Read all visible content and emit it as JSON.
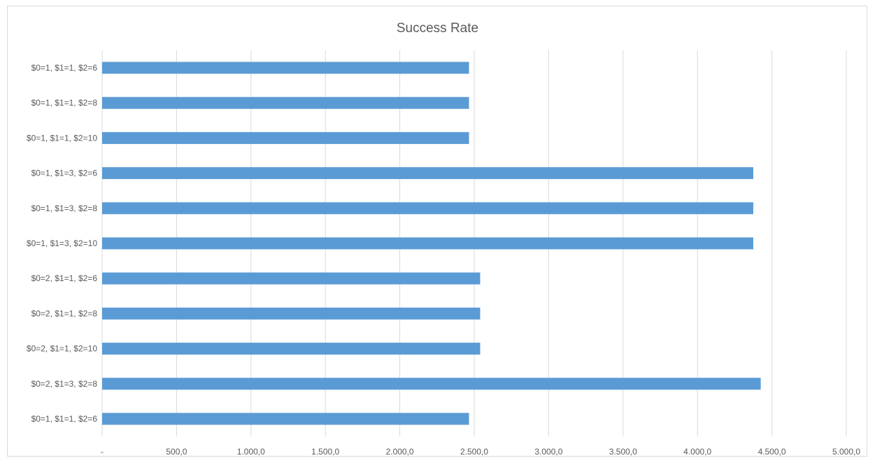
{
  "chart_data": {
    "type": "bar",
    "orientation": "horizontal",
    "title": "Success Rate",
    "xlabel": "",
    "ylabel": "",
    "categories": [
      "$0=1, $1=1, $2=6",
      "$0=1, $1=1, $2=8",
      "$0=1, $1=1, $2=10",
      "$0=1, $1=3, $2=6",
      "$0=1, $1=3, $2=8",
      "$0=1, $1=3, $2=10",
      "$0=2, $1=1, $2=6",
      "$0=2, $1=1, $2=8",
      "$0=2, $1=1, $2=10",
      "$0=2, $1=3, $2=8",
      "$0=1, $1=1, $2=6"
    ],
    "values": [
      2465,
      2465,
      2465,
      4375,
      4375,
      4375,
      2540,
      2540,
      2540,
      4425,
      2465
    ],
    "xlim": [
      0,
      5000
    ],
    "xticks": [
      0,
      500,
      1000,
      1500,
      2000,
      2500,
      3000,
      3500,
      4000,
      4500,
      5000
    ],
    "xtick_labels": [
      "-",
      "500,0",
      "1.000,0",
      "1.500,0",
      "2.000,0",
      "2.500,0",
      "3.000,0",
      "3.500,0",
      "4.000,0",
      "4.500,0",
      "5.000,0"
    ],
    "grid": "vertical",
    "legend": "none",
    "bar_color": "#5b9bd5",
    "grid_color": "#d9d9d9"
  }
}
